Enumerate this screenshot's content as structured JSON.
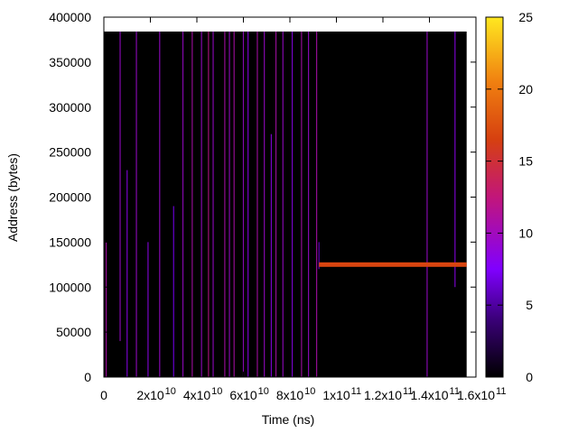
{
  "chart_data": {
    "type": "heatmap",
    "xlabel": "Time (ns)",
    "ylabel": "Address (bytes)",
    "xlim": [
      0,
      160000000000
    ],
    "ylim": [
      0,
      400000
    ],
    "data_extent": {
      "x": [
        0,
        156000000000
      ],
      "y": [
        0,
        384000
      ]
    },
    "x_ticks": [
      {
        "value": 0,
        "label": "0",
        "exp": ""
      },
      {
        "value": 20000000000,
        "label": "2x10",
        "exp": "10"
      },
      {
        "value": 40000000000,
        "label": "4x10",
        "exp": "10"
      },
      {
        "value": 60000000000,
        "label": "6x10",
        "exp": "10"
      },
      {
        "value": 80000000000,
        "label": "8x10",
        "exp": "10"
      },
      {
        "value": 100000000000,
        "label": "1x10",
        "exp": "11"
      },
      {
        "value": 120000000000,
        "label": "1.2x10",
        "exp": "11"
      },
      {
        "value": 140000000000,
        "label": "1.4x10",
        "exp": "11"
      },
      {
        "value": 160000000000,
        "label": "1.6x10",
        "exp": "11"
      }
    ],
    "y_ticks": [
      {
        "value": 0,
        "label": "0"
      },
      {
        "value": 50000,
        "label": "50000"
      },
      {
        "value": 100000,
        "label": "100000"
      },
      {
        "value": 150000,
        "label": "150000"
      },
      {
        "value": 200000,
        "label": "200000"
      },
      {
        "value": 250000,
        "label": "250000"
      },
      {
        "value": 300000,
        "label": "300000"
      },
      {
        "value": 350000,
        "label": "350000"
      },
      {
        "value": 400000,
        "label": "400000"
      }
    ],
    "colorbar": {
      "range": [
        0,
        25
      ],
      "ticks": [
        0,
        5,
        10,
        15,
        20,
        25
      ],
      "palette": [
        "#000000",
        "#3a0078",
        "#8000ff",
        "#c2167a",
        "#d64010",
        "#f08010",
        "#ffe820"
      ]
    },
    "background_value": 0,
    "hot_band": {
      "x_start": 92500000000,
      "x_end": 156000000000,
      "y_center": 125000,
      "y_half_width": 2500,
      "value": 17
    },
    "spike_lines": [
      {
        "x": 1000000000,
        "y0": 0,
        "y1": 150000,
        "value": 11
      },
      {
        "x": 7000000000,
        "y0": 40000,
        "y1": 384000,
        "value": 10
      },
      {
        "x": 10000000000,
        "y0": 0,
        "y1": 230000,
        "value": 9
      },
      {
        "x": 14000000000,
        "y0": 0,
        "y1": 384000,
        "value": 10
      },
      {
        "x": 19000000000,
        "y0": 0,
        "y1": 150000,
        "value": 9
      },
      {
        "x": 24000000000,
        "y0": 0,
        "y1": 384000,
        "value": 10
      },
      {
        "x": 30000000000,
        "y0": 0,
        "y1": 190000,
        "value": 8
      },
      {
        "x": 34000000000,
        "y0": 0,
        "y1": 384000,
        "value": 10
      },
      {
        "x": 38000000000,
        "y0": 0,
        "y1": 384000,
        "value": 11
      },
      {
        "x": 42000000000,
        "y0": 0,
        "y1": 384000,
        "value": 10
      },
      {
        "x": 45000000000,
        "y0": 0,
        "y1": 384000,
        "value": 12
      },
      {
        "x": 47000000000,
        "y0": 0,
        "y1": 384000,
        "value": 10
      },
      {
        "x": 52000000000,
        "y0": 0,
        "y1": 384000,
        "value": 11
      },
      {
        "x": 54000000000,
        "y0": 0,
        "y1": 384000,
        "value": 10
      },
      {
        "x": 56000000000,
        "y0": 0,
        "y1": 384000,
        "value": 11
      },
      {
        "x": 60000000000,
        "y0": 0,
        "y1": 384000,
        "value": 10
      },
      {
        "x": 62000000000,
        "y0": 0,
        "y1": 384000,
        "value": 9
      },
      {
        "x": 66000000000,
        "y0": 0,
        "y1": 384000,
        "value": 11
      },
      {
        "x": 69000000000,
        "y0": 0,
        "y1": 384000,
        "value": 10
      },
      {
        "x": 72000000000,
        "y0": 0,
        "y1": 270000,
        "value": 9
      },
      {
        "x": 74000000000,
        "y0": 0,
        "y1": 384000,
        "value": 11
      },
      {
        "x": 77000000000,
        "y0": 0,
        "y1": 384000,
        "value": 10
      },
      {
        "x": 81000000000,
        "y0": 0,
        "y1": 384000,
        "value": 9
      },
      {
        "x": 85000000000,
        "y0": 0,
        "y1": 384000,
        "value": 11
      },
      {
        "x": 88000000000,
        "y0": 0,
        "y1": 384000,
        "value": 10
      },
      {
        "x": 91500000000,
        "y0": 0,
        "y1": 384000,
        "value": 11
      },
      {
        "x": 92500000000,
        "y0": 120000,
        "y1": 150000,
        "value": 7
      },
      {
        "x": 139000000000,
        "y0": 0,
        "y1": 384000,
        "value": 10
      },
      {
        "x": 151000000000,
        "y0": 100000,
        "y1": 384000,
        "value": 9
      }
    ]
  }
}
